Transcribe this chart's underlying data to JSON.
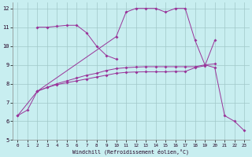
{
  "xlabel": "Windchill (Refroidissement éolien,°C)",
  "bg_color": "#c8eef0",
  "grid_color": "#a0c8c8",
  "line_color": "#993399",
  "xlim": [
    -0.5,
    23.5
  ],
  "ylim": [
    5,
    12.3
  ],
  "xticks": [
    0,
    1,
    2,
    3,
    4,
    5,
    6,
    7,
    8,
    9,
    10,
    11,
    12,
    13,
    14,
    15,
    16,
    17,
    18,
    19,
    20,
    21,
    22,
    23
  ],
  "yticks": [
    5,
    6,
    7,
    8,
    9,
    10,
    11,
    12
  ],
  "line1": {
    "x": [
      2,
      3,
      4,
      5,
      6,
      7,
      8,
      9,
      10
    ],
    "y": [
      11.0,
      11.0,
      11.05,
      11.1,
      11.1,
      10.7,
      10.0,
      9.5,
      9.3
    ]
  },
  "line2": {
    "x": [
      0,
      1,
      2,
      3,
      4,
      5,
      6,
      7,
      8,
      9,
      10,
      11,
      12,
      13,
      14,
      15,
      16,
      17,
      18,
      19,
      20
    ],
    "y": [
      6.3,
      6.6,
      7.6,
      7.8,
      7.95,
      8.05,
      8.15,
      8.25,
      8.35,
      8.45,
      8.55,
      8.6,
      8.62,
      8.63,
      8.63,
      8.63,
      8.65,
      8.65,
      8.85,
      8.95,
      10.3
    ]
  },
  "line3": {
    "x": [
      2,
      3,
      4,
      5,
      6,
      7,
      8,
      9,
      10,
      11,
      12,
      13,
      14,
      15,
      16,
      17,
      18,
      19,
      20
    ],
    "y": [
      7.6,
      7.8,
      8.0,
      8.15,
      8.3,
      8.45,
      8.55,
      8.7,
      8.8,
      8.85,
      8.88,
      8.9,
      8.9,
      8.9,
      8.9,
      8.9,
      8.9,
      9.0,
      9.05
    ]
  },
  "line4": {
    "x": [
      0,
      2,
      10,
      11,
      12,
      13,
      14,
      15,
      16,
      17,
      18,
      19,
      20,
      21,
      22,
      23
    ],
    "y": [
      6.3,
      7.6,
      10.5,
      11.8,
      12.0,
      12.0,
      12.0,
      11.8,
      12.0,
      12.0,
      10.3,
      9.0,
      8.85,
      6.3,
      6.0,
      5.5
    ]
  }
}
